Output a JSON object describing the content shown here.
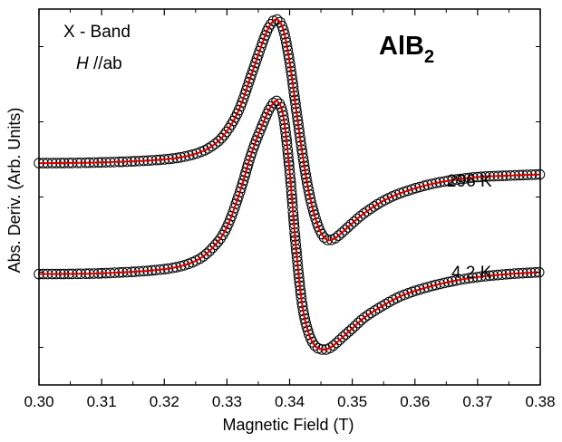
{
  "chart_data": {
    "type": "line",
    "xlabel": "Magnetic Field (T)",
    "ylabel": "Abs. Deriv. (Arb. Units)",
    "xlim": [
      0.3,
      0.38
    ],
    "ylim": [
      0,
      10
    ],
    "x_ticks": [
      "0.30",
      "0.31",
      "0.32",
      "0.33",
      "0.34",
      "0.35",
      "0.36",
      "0.37",
      "0.38"
    ],
    "y_minor_ticks": [
      1,
      3,
      5,
      7,
      9
    ],
    "grid": false,
    "annotations": {
      "line1": "X - Band",
      "field_symbol": "H",
      "field_rest": " //ab",
      "material_main": "AlB",
      "material_sub": "2"
    },
    "series": [
      {
        "name": "296 K",
        "marker": "circle",
        "fit_color": "#dd0000",
        "x": [
          0.3,
          0.31,
          0.32,
          0.325,
          0.328,
          0.33,
          0.332,
          0.334,
          0.336,
          0.337,
          0.338,
          0.339,
          0.34,
          0.341,
          0.342,
          0.343,
          0.344,
          0.345,
          0.346,
          0.347,
          0.348,
          0.35,
          0.352,
          0.355,
          0.358,
          0.362,
          0.366,
          0.37,
          0.375,
          0.38
        ],
        "values": [
          5.9,
          5.92,
          6.0,
          6.15,
          6.4,
          6.75,
          7.35,
          8.3,
          9.25,
          9.6,
          9.72,
          9.45,
          8.6,
          7.4,
          6.2,
          5.2,
          4.5,
          4.05,
          3.86,
          3.88,
          4.0,
          4.3,
          4.58,
          4.9,
          5.12,
          5.32,
          5.45,
          5.53,
          5.57,
          5.6
        ]
      },
      {
        "name": "4.2 K",
        "marker": "circle",
        "fit_color": "#dd0000",
        "x": [
          0.3,
          0.31,
          0.32,
          0.325,
          0.328,
          0.33,
          0.332,
          0.334,
          0.336,
          0.337,
          0.338,
          0.339,
          0.34,
          0.341,
          0.342,
          0.343,
          0.344,
          0.345,
          0.346,
          0.347,
          0.348,
          0.35,
          0.352,
          0.355,
          0.358,
          0.362,
          0.366,
          0.37,
          0.375,
          0.38
        ],
        "values": [
          2.95,
          2.97,
          3.08,
          3.3,
          3.7,
          4.2,
          5.1,
          6.2,
          7.05,
          7.4,
          7.55,
          7.15,
          5.7,
          3.7,
          2.15,
          1.4,
          1.05,
          0.95,
          0.95,
          1.05,
          1.2,
          1.5,
          1.8,
          2.12,
          2.38,
          2.6,
          2.76,
          2.87,
          2.95,
          3.0
        ]
      }
    ]
  }
}
